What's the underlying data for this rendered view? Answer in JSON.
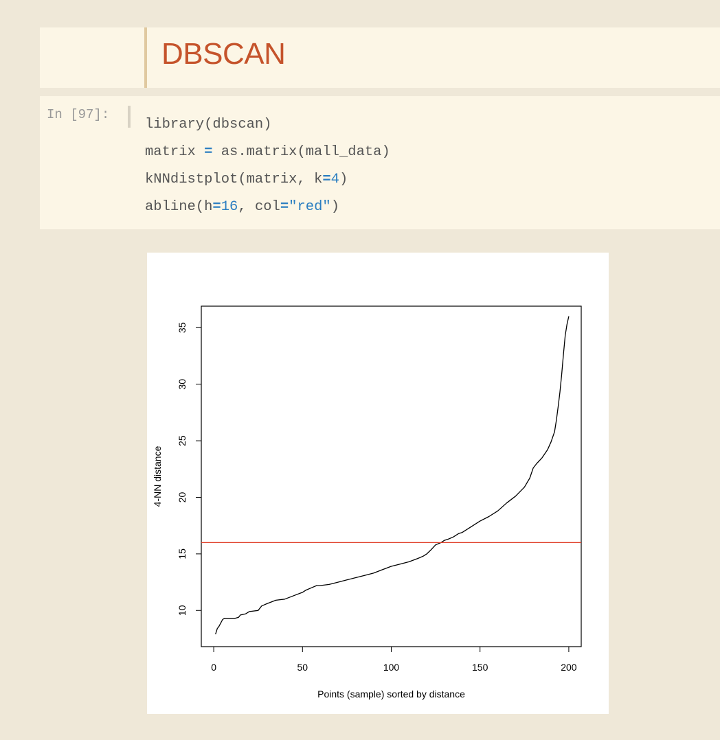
{
  "markdown": {
    "title": "DBSCAN"
  },
  "code_cell": {
    "prompt": "In [97]:",
    "lines": [
      [
        {
          "t": "library(dbscan)",
          "c": "plain"
        }
      ],
      [
        {
          "t": "matrix ",
          "c": "plain"
        },
        {
          "t": "=",
          "c": "op"
        },
        {
          "t": " as.matrix(mall_data)",
          "c": "plain"
        }
      ],
      [
        {
          "t": "kNNdistplot(matrix, k",
          "c": "plain"
        },
        {
          "t": "=",
          "c": "op"
        },
        {
          "t": "4",
          "c": "num"
        },
        {
          "t": ")",
          "c": "plain"
        }
      ],
      [
        {
          "t": "abline(h",
          "c": "plain"
        },
        {
          "t": "=",
          "c": "op"
        },
        {
          "t": "16",
          "c": "num"
        },
        {
          "t": ", col",
          "c": "plain"
        },
        {
          "t": "=",
          "c": "op"
        },
        {
          "t": "\"red\"",
          "c": "str"
        },
        {
          "t": ")",
          "c": "plain"
        }
      ]
    ]
  },
  "chart_data": {
    "type": "line",
    "title": "",
    "xlabel": "Points (sample) sorted by distance",
    "ylabel": "4-NN distance",
    "xlim": [
      -7,
      207
    ],
    "ylim": [
      6.8,
      36.9
    ],
    "xticks": [
      0,
      50,
      100,
      150,
      200
    ],
    "yticks": [
      10,
      15,
      20,
      25,
      30,
      35
    ],
    "grid": false,
    "series": [
      {
        "color": "#000000",
        "x": [
          1,
          2,
          3,
          4,
          5,
          6,
          7,
          8,
          10,
          12,
          14,
          15,
          18,
          20,
          25,
          27,
          30,
          35,
          40,
          45,
          50,
          52,
          55,
          58,
          60,
          65,
          70,
          75,
          80,
          85,
          90,
          95,
          100,
          105,
          110,
          115,
          118,
          120,
          122,
          125,
          128,
          130,
          132,
          135,
          138,
          140,
          145,
          150,
          155,
          160,
          165,
          170,
          175,
          178,
          180,
          182,
          185,
          188,
          190,
          192,
          193,
          194,
          195,
          196,
          197,
          198,
          199,
          200
        ],
        "values": [
          7.9,
          8.4,
          8.6,
          8.9,
          9.2,
          9.3,
          9.3,
          9.3,
          9.3,
          9.3,
          9.4,
          9.6,
          9.7,
          9.9,
          10.0,
          10.4,
          10.6,
          10.9,
          11.0,
          11.3,
          11.6,
          11.8,
          12.0,
          12.2,
          12.2,
          12.3,
          12.5,
          12.7,
          12.9,
          13.1,
          13.3,
          13.6,
          13.9,
          14.1,
          14.3,
          14.6,
          14.8,
          15.0,
          15.3,
          15.8,
          16.0,
          16.2,
          16.3,
          16.5,
          16.8,
          16.9,
          17.4,
          17.9,
          18.3,
          18.8,
          19.5,
          20.1,
          20.9,
          21.7,
          22.6,
          23.0,
          23.5,
          24.2,
          24.9,
          25.8,
          26.8,
          28.0,
          29.3,
          30.9,
          32.7,
          34.3,
          35.3,
          36.0
        ]
      }
    ],
    "hline": {
      "y": 16,
      "color": "#e0402a"
    }
  }
}
